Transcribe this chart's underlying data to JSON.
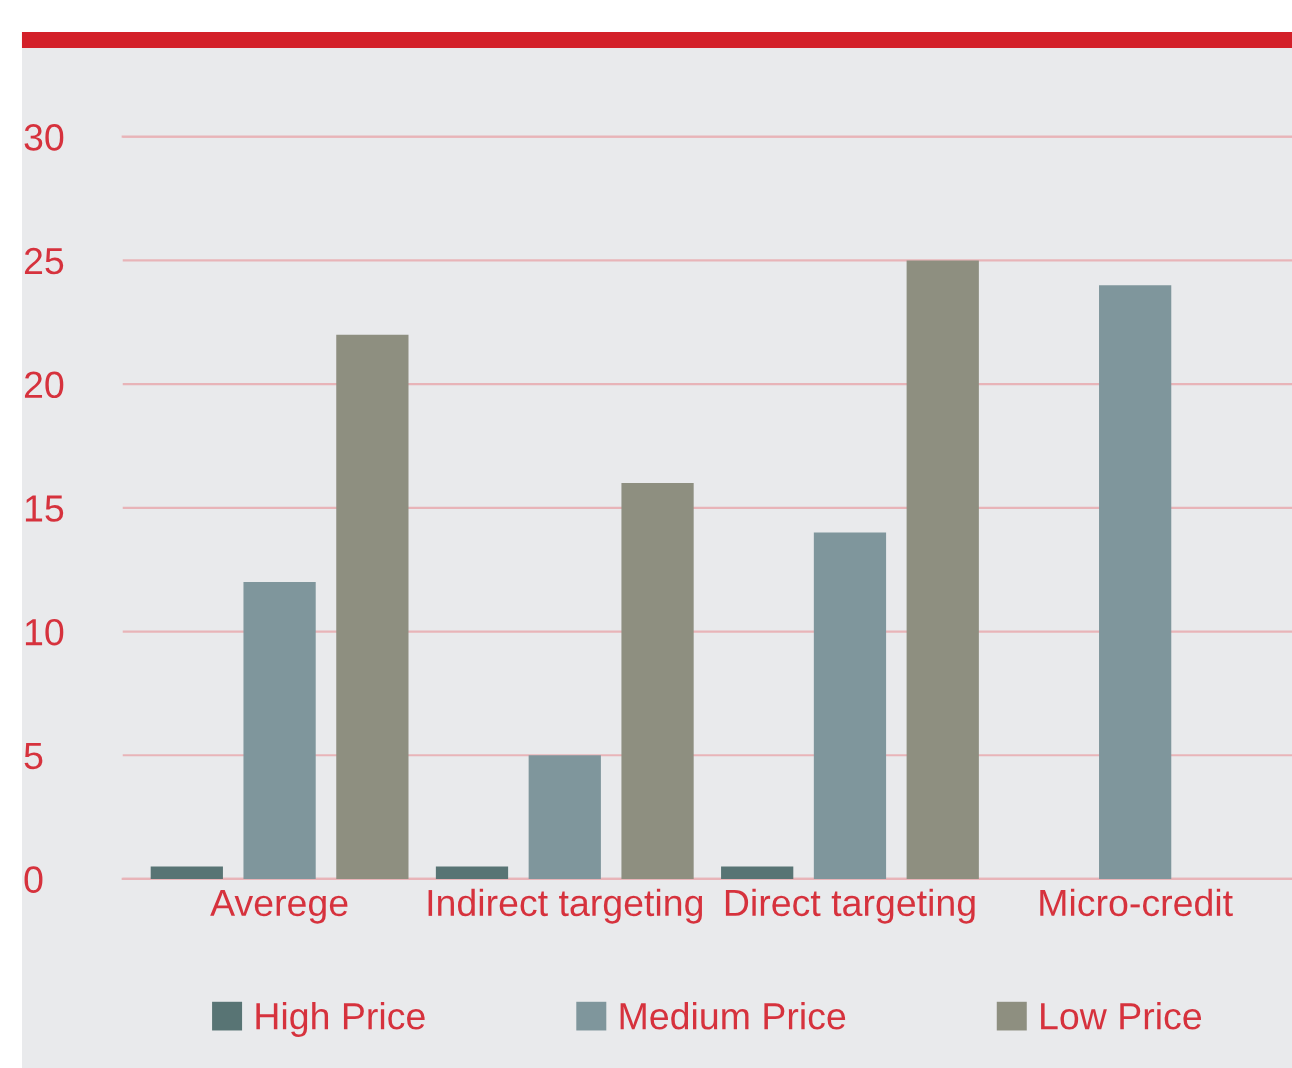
{
  "chart_data": {
    "type": "bar",
    "categories": [
      "Averege",
      "Indirect targeting",
      "Direct targeting",
      "Micro-credit"
    ],
    "series": [
      {
        "name": "High Price",
        "color": "#587474",
        "values": [
          0.5,
          0.5,
          0.5,
          null
        ]
      },
      {
        "name": "Medium Price",
        "color": "#7f969c",
        "values": [
          12,
          5,
          14,
          24
        ]
      },
      {
        "name": "Low Price",
        "color": "#8e8f80",
        "values": [
          22,
          16,
          25,
          null
        ]
      }
    ],
    "ylim": [
      0,
      30
    ],
    "yticks": [
      0,
      5,
      10,
      15,
      20,
      25,
      30
    ],
    "grid": "y",
    "legend": "bottom"
  }
}
